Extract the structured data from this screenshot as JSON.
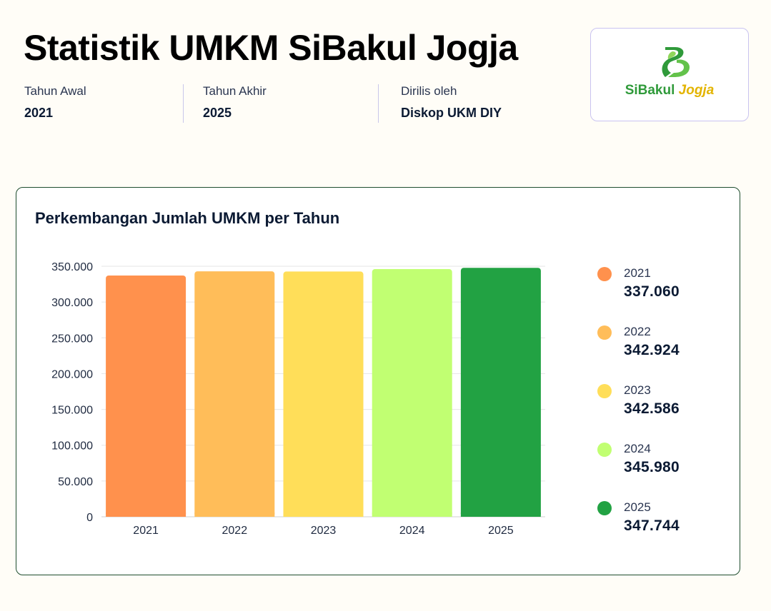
{
  "header": {
    "title": "Statistik UMKM SiBakul Jogja",
    "meta": [
      {
        "label": "Tahun Awal",
        "value": "2021"
      },
      {
        "label": "Tahun Akhir",
        "value": "2025"
      },
      {
        "label": "Dirilis oleh",
        "value": "Diskop UKM DIY"
      }
    ]
  },
  "logo": {
    "icon": "sibakul-logo-icon",
    "text_a": "SiBakul",
    "text_b": "Jogja",
    "colors": {
      "green": "#2f9a3a",
      "yellow": "#e3b400"
    }
  },
  "chart_data": {
    "type": "bar",
    "title": "Perkembangan Jumlah UMKM per Tahun",
    "categories": [
      "2021",
      "2022",
      "2023",
      "2024",
      "2025"
    ],
    "values": [
      337060,
      342924,
      342586,
      345980,
      347744
    ],
    "value_labels": [
      "337.060",
      "342.924",
      "342.586",
      "345.980",
      "347.744"
    ],
    "colors": [
      "#ff914d",
      "#ffbd59",
      "#ffde59",
      "#c1ff72",
      "#22a243"
    ],
    "ylim": [
      0,
      350000
    ],
    "yticks": [
      0,
      50000,
      100000,
      150000,
      200000,
      250000,
      300000,
      350000
    ],
    "ytick_labels": [
      "0",
      "50.000",
      "100.000",
      "150.000",
      "200.000",
      "250.000",
      "300.000",
      "350.000"
    ],
    "xlabel": "",
    "ylabel": "",
    "grid": true,
    "legend_position": "right"
  }
}
